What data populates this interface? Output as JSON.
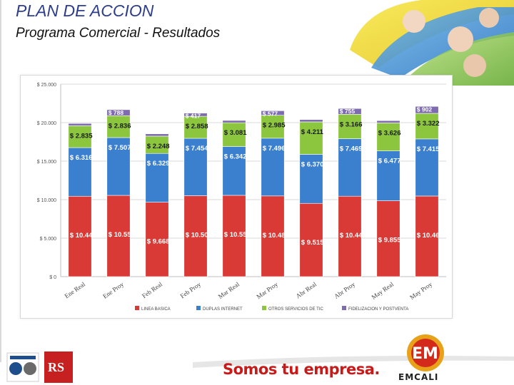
{
  "slide": {
    "title": "PLAN DE ACCION",
    "subtitle": "Programa Comercial - Resultados",
    "slogan": "Somos tu empresa.",
    "brand": "EMCALI",
    "brand_logo_letters": "EM",
    "rs_logo_letters": "RS"
  },
  "colors": {
    "linea_basica": "#d93a36",
    "duplas_internet": "#3b7fcf",
    "otros_tic": "#8cc63f",
    "fidelizacion": "#7e6bb0",
    "title": "#2e3e8c",
    "slogan": "#c71a1a"
  },
  "chart_data": {
    "type": "bar",
    "stacked": true,
    "categories": [
      "Ene Real",
      "Ene Proy",
      "Feb Real",
      "Feb Proy",
      "Mar Real",
      "Mar Proy",
      "Abr Real",
      "Abr Proy",
      "May Real",
      "May Proy"
    ],
    "series": [
      {
        "name": "LINEA BASICA",
        "values": [
          10440,
          10551,
          9668,
          10509,
          10559,
          10481,
          9515,
          10444,
          9855,
          10467
        ],
        "labels": [
          "$ 10.440",
          "$ 10.551",
          "$ 9.668",
          "$ 10.509",
          "$ 10.559",
          "$ 10.481",
          "$ 9.515",
          "$ 10.444",
          "$ 9.855",
          "$ 10.467"
        ]
      },
      {
        "name": "DUPLAS INTERNET",
        "values": [
          6316,
          7507,
          6329,
          7454,
          6342,
          7496,
          6370,
          7469,
          6477,
          7415
        ],
        "labels": [
          "$ 6.316",
          "$ 7.507",
          "$ 6.329",
          "$ 7.454",
          "$ 6.342",
          "$ 7.496",
          "$ 6.370",
          "$ 7.469",
          "$ 6.477",
          "$ 7.415"
        ]
      },
      {
        "name": "OTROS SERVICIOS DE TIC",
        "values": [
          2835,
          2836,
          2248,
          2858,
          3081,
          2985,
          4211,
          3166,
          3626,
          3322
        ],
        "labels": [
          "$ 2.835",
          "$ 2.836",
          "$ 2.248",
          "$ 2.858",
          "$ 3.081",
          "$ 2.985",
          "$ 4.211",
          "$ 3.166",
          "$ 3.626",
          "$ 3.322"
        ]
      },
      {
        "name": "FIDELIZACION Y POSTVENTA",
        "values": [
          300,
          788,
          300,
          417,
          300,
          577,
          300,
          755,
          300,
          902
        ],
        "labels": [
          "",
          "$ 788",
          "",
          "$ 417",
          "",
          "$ 577",
          "",
          "$ 755",
          "",
          "$ 902"
        ]
      }
    ],
    "ylim": [
      0,
      25000
    ],
    "yticks": [
      0,
      5000,
      10000,
      15000,
      20000,
      25000
    ],
    "ytick_labels": [
      "$ 0",
      "$ 5.000",
      "$ 10.000",
      "$ 15.000",
      "$ 20.000",
      "$ 25.000"
    ],
    "grid": true,
    "legend_position": "bottom"
  }
}
